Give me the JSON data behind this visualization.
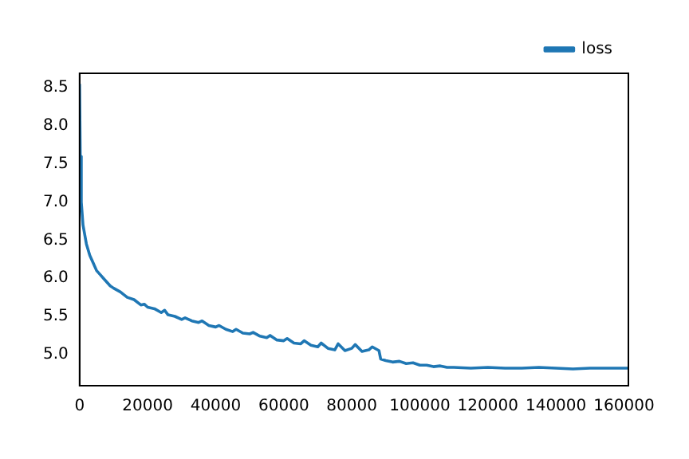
{
  "chart_data": {
    "type": "line",
    "legend": "top right",
    "xlim": [
      0,
      161300
    ],
    "ylim": [
      4.59,
      8.69
    ],
    "xticks": [
      0,
      20000,
      40000,
      60000,
      80000,
      100000,
      120000,
      140000,
      160000
    ],
    "yticks": [
      {
        "value": 5,
        "label": "5.0"
      },
      {
        "value": 5.5,
        "label": "5.5"
      },
      {
        "value": 6,
        "label": "6.0"
      },
      {
        "value": 6.5,
        "label": "6.5"
      },
      {
        "value": 7,
        "label": "7.0"
      },
      {
        "value": 7.5,
        "label": "7.5"
      },
      {
        "value": 8,
        "label": "8.0"
      },
      {
        "value": 8.5,
        "label": "8.5"
      }
    ],
    "series": [
      {
        "name": "loss",
        "color": "#1f77b4",
        "x": [
          0,
          200,
          500,
          1000,
          2000,
          3000,
          4000,
          5000,
          6000,
          7000,
          8000,
          9000,
          10000,
          12000,
          14000,
          16000,
          18000,
          19000,
          20000,
          22000,
          24000,
          25000,
          26000,
          28000,
          30000,
          31000,
          33000,
          35000,
          36000,
          38000,
          40000,
          41000,
          43000,
          45000,
          46000,
          48000,
          50000,
          51000,
          53000,
          55000,
          56000,
          58000,
          60000,
          61000,
          63000,
          65000,
          66000,
          68000,
          70000,
          71000,
          73000,
          75000,
          76000,
          78000,
          80000,
          81000,
          83000,
          85000,
          86000,
          88000,
          88500,
          90000,
          92000,
          94000,
          96000,
          98000,
          100000,
          102000,
          104000,
          106000,
          108000,
          110000,
          115000,
          120000,
          125000,
          130000,
          135000,
          140000,
          145000,
          150000,
          155000,
          160000,
          161300
        ],
        "values": [
          8.55,
          7.6,
          7.0,
          6.7,
          6.45,
          6.3,
          6.2,
          6.1,
          6.05,
          6.0,
          5.95,
          5.9,
          5.87,
          5.82,
          5.75,
          5.72,
          5.65,
          5.66,
          5.62,
          5.6,
          5.55,
          5.58,
          5.52,
          5.5,
          5.46,
          5.48,
          5.44,
          5.42,
          5.44,
          5.38,
          5.36,
          5.38,
          5.33,
          5.3,
          5.33,
          5.28,
          5.27,
          5.29,
          5.24,
          5.22,
          5.25,
          5.19,
          5.18,
          5.21,
          5.15,
          5.14,
          5.18,
          5.12,
          5.1,
          5.15,
          5.08,
          5.06,
          5.14,
          5.05,
          5.08,
          5.13,
          5.04,
          5.06,
          5.1,
          5.05,
          4.94,
          4.92,
          4.9,
          4.91,
          4.88,
          4.89,
          4.86,
          4.86,
          4.84,
          4.85,
          4.83,
          4.83,
          4.82,
          4.83,
          4.82,
          4.82,
          4.83,
          4.82,
          4.81,
          4.82,
          4.82,
          4.82,
          4.82
        ]
      }
    ]
  }
}
